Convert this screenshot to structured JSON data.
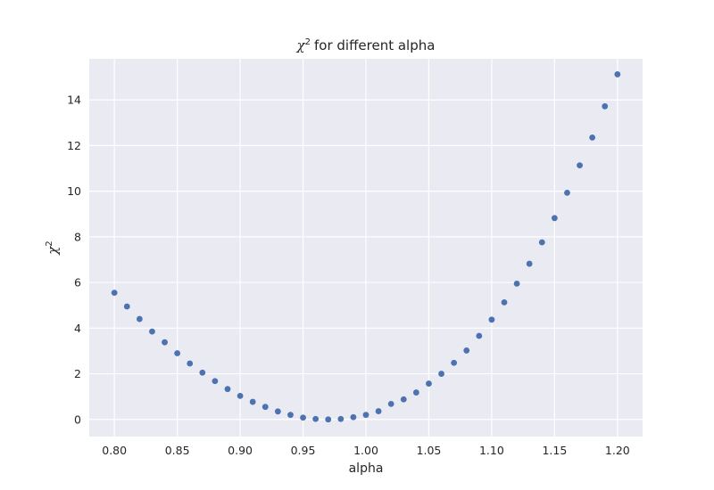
{
  "chart_data": {
    "type": "scatter",
    "title": {
      "symbol": "χ",
      "superscript": "2",
      "text": "for different alpha"
    },
    "xlabel": "alpha",
    "ylabel": {
      "symbol": "χ",
      "superscript": "2"
    },
    "xlim": [
      0.78,
      1.22
    ],
    "ylim": [
      -0.75,
      15.8
    ],
    "xticks": [
      0.8,
      0.85,
      0.9,
      0.95,
      1.0,
      1.05,
      1.1,
      1.15,
      1.2
    ],
    "xtick_labels": [
      "0.80",
      "0.85",
      "0.90",
      "0.95",
      "1.00",
      "1.05",
      "1.10",
      "1.15",
      "1.20"
    ],
    "yticks": [
      0,
      2,
      4,
      6,
      8,
      10,
      12,
      14
    ],
    "ytick_labels": [
      "0",
      "2",
      "4",
      "6",
      "8",
      "10",
      "12",
      "14"
    ],
    "grid": true,
    "style": {
      "background": "#eaeaf2",
      "grid_color": "#ffffff",
      "point_color": "#4c72b0"
    },
    "x": [
      0.8,
      0.81,
      0.82,
      0.83,
      0.84,
      0.85,
      0.86,
      0.87,
      0.88,
      0.89,
      0.9,
      0.91,
      0.92,
      0.93,
      0.94,
      0.95,
      0.96,
      0.97,
      0.98,
      0.99,
      1.0,
      1.01,
      1.02,
      1.03,
      1.04,
      1.05,
      1.06,
      1.07,
      1.08,
      1.09,
      1.1,
      1.11,
      1.12,
      1.13,
      1.14,
      1.15,
      1.16,
      1.17,
      1.18,
      1.19,
      1.2
    ],
    "y": [
      5.55,
      4.95,
      4.4,
      3.85,
      3.38,
      2.9,
      2.45,
      2.05,
      1.68,
      1.33,
      1.03,
      0.77,
      0.55,
      0.35,
      0.2,
      0.08,
      0.02,
      0.0,
      0.02,
      0.1,
      0.2,
      0.36,
      0.68,
      0.88,
      1.18,
      1.57,
      2.0,
      2.48,
      3.02,
      3.66,
      4.37,
      5.13,
      5.95,
      6.82,
      7.76,
      8.82,
      9.93,
      11.13,
      12.35,
      13.72,
      15.12
    ]
  }
}
